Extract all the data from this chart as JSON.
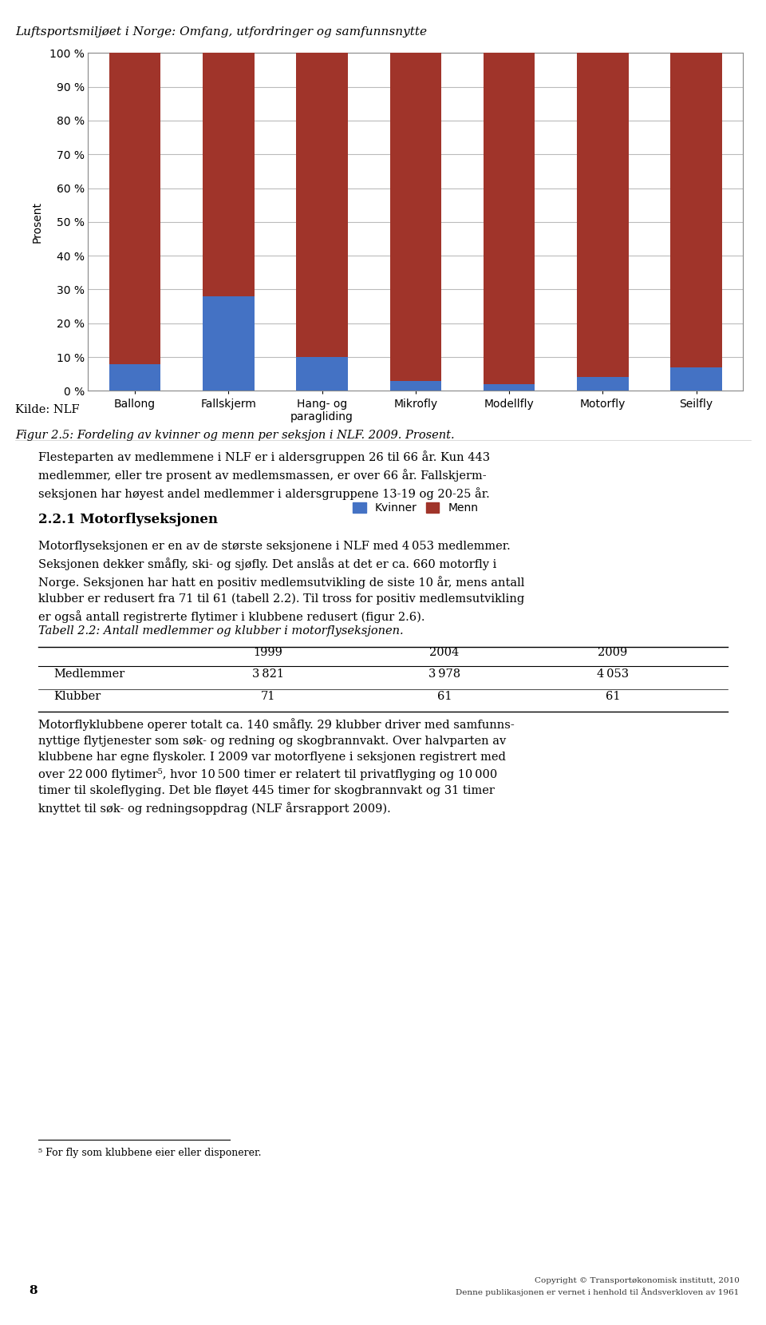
{
  "categories": [
    "Ballong",
    "Fallskjerm",
    "Hang- og\nparagliding",
    "Mikrofly",
    "Modellfly",
    "Motorfly",
    "Seilfly"
  ],
  "kvinner": [
    8,
    28,
    10,
    3,
    2,
    4,
    7
  ],
  "menn": [
    92,
    72,
    90,
    97,
    98,
    96,
    93
  ],
  "kvinner_color": "#4472C4",
  "menn_color": "#A0342A",
  "ylabel": "Prosent",
  "yticks": [
    0,
    10,
    20,
    30,
    40,
    50,
    60,
    70,
    80,
    90,
    100
  ],
  "yticklabels": [
    "0 %",
    "10 %",
    "20 %",
    "30 %",
    "40 %",
    "50 %",
    "60 %",
    "70 %",
    "80 %",
    "90 %",
    "100 %"
  ],
  "legend_kvinner": "Kvinner",
  "legend_menn": "Menn",
  "header_text": "Luftsportsmiljøet i Norge: Omfang, utfordringer og samfunnsnytte",
  "caption_text": "Kilde: NLF",
  "figure_text": "Figur 2.5: Fordeling av kvinner og menn per seksjon i NLF. 2009. Prosent.",
  "bar_width": 0.55,
  "background_color": "#FFFFFF",
  "plot_bg_color": "#FFFFFF",
  "grid_color": "#BBBBBB",
  "axis_fontsize": 10,
  "tick_fontsize": 10,
  "legend_fontsize": 10,
  "body_fontsize": 10.5,
  "small_fontsize": 9
}
